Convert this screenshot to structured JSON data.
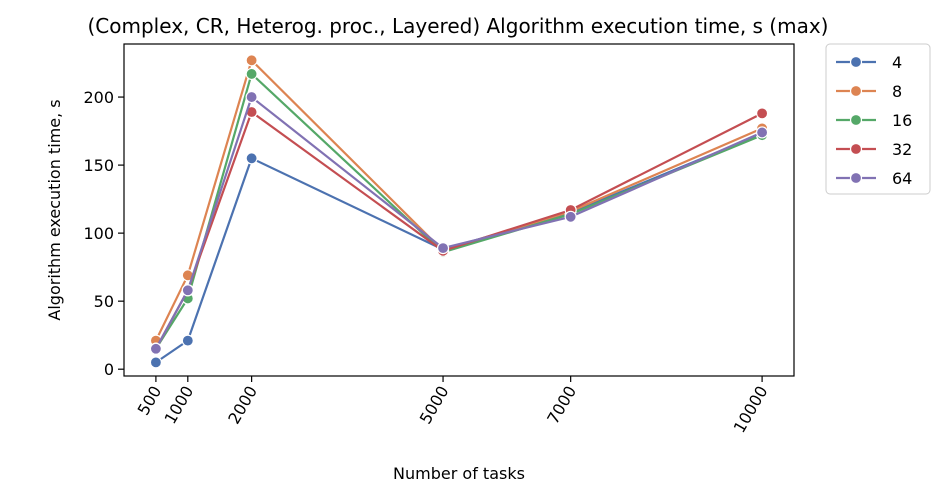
{
  "chart_data": {
    "type": "line",
    "title": "(Complex, CR, Heterog. proc., Layered) Algorithm execution time, s (max)",
    "xlabel": "Number of tasks",
    "ylabel": "Algorithm execution time, s",
    "x": [
      500,
      1000,
      2000,
      5000,
      7000,
      10000
    ],
    "x_tick_labels": [
      "500",
      "1000",
      "2000",
      "5000",
      "7000",
      "10000"
    ],
    "xlim": [
      0,
      10500
    ],
    "ylim": [
      -5,
      239
    ],
    "y_ticks": [
      0,
      50,
      100,
      150,
      200
    ],
    "y_tick_labels": [
      "0",
      "50",
      "100",
      "150",
      "200"
    ],
    "grid": false,
    "legend_position": "outside-right-top",
    "series": [
      {
        "name": "4",
        "color": "#4c72b0",
        "values": [
          5,
          21,
          155,
          88,
          115,
          173
        ]
      },
      {
        "name": "8",
        "color": "#dd8452",
        "values": [
          21,
          69,
          227,
          87,
          116,
          177
        ]
      },
      {
        "name": "16",
        "color": "#55a868",
        "values": [
          15,
          52,
          217,
          86,
          114,
          172
        ]
      },
      {
        "name": "32",
        "color": "#c44e52",
        "values": [
          15,
          58,
          189,
          87,
          117,
          188
        ]
      },
      {
        "name": "64",
        "color": "#8172b3",
        "values": [
          15,
          58,
          200,
          89,
          112,
          174
        ]
      }
    ]
  }
}
